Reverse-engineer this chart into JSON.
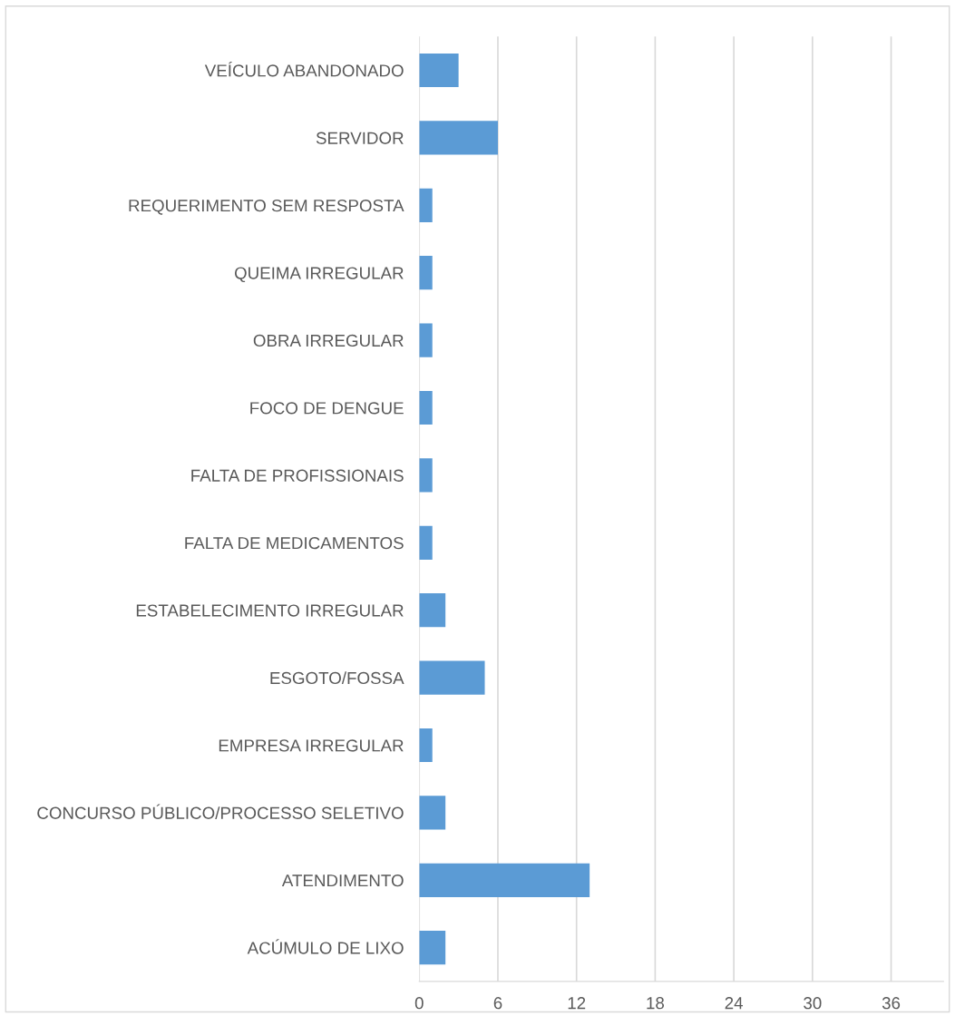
{
  "chart_data": {
    "type": "bar",
    "orientation": "horizontal",
    "categories": [
      "VEÍCULO ABANDONADO",
      "SERVIDOR",
      "REQUERIMENTO SEM RESPOSTA",
      "QUEIMA IRREGULAR",
      "OBRA IRREGULAR",
      "FOCO DE DENGUE",
      "FALTA DE PROFISSIONAIS",
      "FALTA DE MEDICAMENTOS",
      "ESTABELECIMENTO IRREGULAR",
      "ESGOTO/FOSSA",
      "EMPRESA IRREGULAR",
      "CONCURSO PÚBLICO/PROCESSO SELETIVO",
      "ATENDIMENTO",
      "ACÚMULO DE LIXO"
    ],
    "values": [
      3,
      6,
      1,
      1,
      1,
      1,
      1,
      1,
      2,
      5,
      1,
      2,
      13,
      2
    ],
    "color": "#5b9bd5",
    "xlim": [
      0,
      40
    ],
    "xticks": [
      0,
      6,
      12,
      18,
      24,
      30,
      36
    ],
    "grid": "x"
  }
}
